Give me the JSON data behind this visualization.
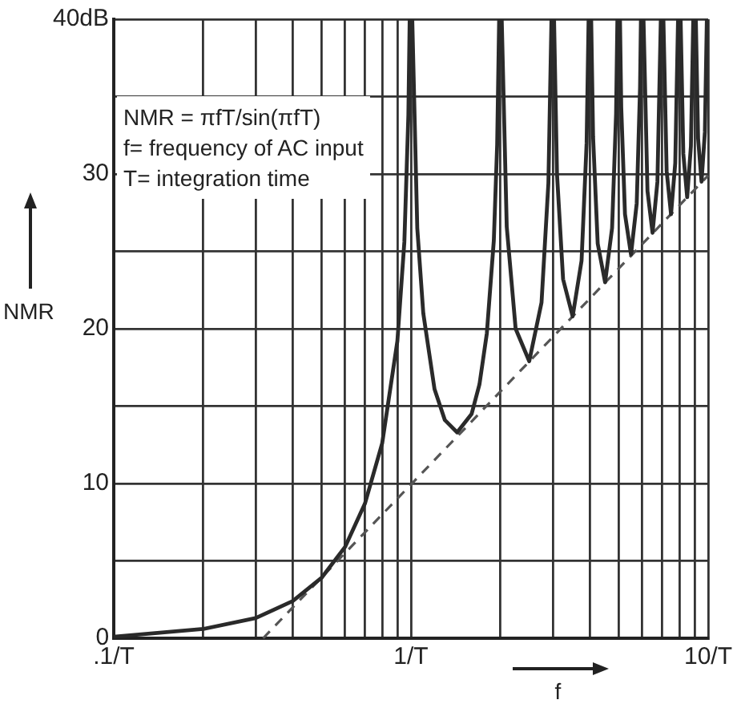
{
  "chart_data": {
    "type": "line",
    "xlabel": "f",
    "ylabel": "NMR",
    "log": "x",
    "grid": true,
    "annotations": [
      "NMR = πfT/sin(πfT)",
      "f= frequency of AC input",
      "T= integration time"
    ],
    "xlim": [
      0.1,
      10
    ],
    "ylim": [
      0,
      40
    ],
    "xticks": [
      {
        "value": 0.1,
        "label": ".1/T"
      },
      {
        "value": 0.2,
        "label": null
      },
      {
        "value": 0.3,
        "label": null
      },
      {
        "value": 0.4,
        "label": null
      },
      {
        "value": 0.5,
        "label": null
      },
      {
        "value": 0.6,
        "label": null
      },
      {
        "value": 0.7,
        "label": null
      },
      {
        "value": 0.8,
        "label": null
      },
      {
        "value": 0.9,
        "label": null
      },
      {
        "value": 1,
        "label": "1/T"
      },
      {
        "value": 2,
        "label": null
      },
      {
        "value": 3,
        "label": null
      },
      {
        "value": 4,
        "label": null
      },
      {
        "value": 5,
        "label": null
      },
      {
        "value": 6,
        "label": null
      },
      {
        "value": 7,
        "label": null
      },
      {
        "value": 8,
        "label": null
      },
      {
        "value": 9,
        "label": null
      },
      {
        "value": 10,
        "label": "10/T"
      }
    ],
    "yticks": [
      0,
      {
        "value": 5,
        "label": null
      },
      10,
      {
        "value": 15,
        "label": null
      },
      20,
      {
        "value": 25,
        "label": null
      },
      30,
      {
        "value": 35,
        "label": null
      },
      {
        "value": 40,
        "label": "40dB"
      }
    ],
    "series": [
      {
        "color": "#2a2a2a",
        "line_style": "solid",
        "x": [
          0.1,
          0.2,
          0.3,
          0.4,
          0.5,
          0.6,
          0.7,
          0.8,
          0.9,
          0.95,
          0.98,
          0.99,
          1,
          1.01,
          1.05,
          1.1,
          1.2,
          1.3,
          1.43,
          1.6,
          1.7,
          1.8,
          1.9,
          1.95,
          1.98,
          2,
          2.02,
          2.1,
          2.25,
          2.5,
          2.75,
          2.9,
          2.97,
          3,
          3.03,
          3.1,
          3.25,
          3.5,
          3.75,
          3.9,
          3.96,
          4,
          4.04,
          4.1,
          4.25,
          4.5,
          4.75,
          4.9,
          4.95,
          5,
          5.05,
          5.1,
          5.25,
          5.5,
          5.75,
          5.9,
          5.94,
          6,
          6.06,
          6.25,
          6.5,
          6.75,
          6.93,
          7,
          7.07,
          7.25,
          7.5,
          7.75,
          7.92,
          8,
          8.08,
          8.25,
          8.5,
          8.75,
          8.91,
          9,
          9.09,
          9.25,
          9.5,
          9.75,
          9.9
        ],
        "values": [
          0.1,
          0.6,
          1.3,
          2.4,
          3.9,
          5.9,
          8.7,
          12.6,
          19.2,
          25.6,
          33.8,
          40,
          null,
          40,
          26.5,
          21,
          16.1,
          14.1,
          13.3,
          14.5,
          16.4,
          19.7,
          25.7,
          31.9,
          40,
          null,
          40,
          26.6,
          20,
          17.9,
          21.7,
          29.4,
          40,
          null,
          40,
          30,
          23.2,
          20.8,
          24.4,
          32,
          40,
          null,
          40,
          32.4,
          25.5,
          23,
          26.5,
          33.9,
          40,
          null,
          40,
          34.3,
          27.4,
          24.8,
          28.1,
          35.6,
          40,
          null,
          40,
          28.9,
          26.2,
          29.5,
          40,
          null,
          40,
          30.2,
          27.4,
          30.7,
          40,
          null,
          40,
          31.3,
          28.5,
          31.8,
          40,
          null,
          40,
          32.3,
          29.5,
          32.7,
          40
        ]
      },
      {
        "color": "#555555",
        "line_style": "dashed",
        "x": [
          0.318,
          10
        ],
        "values": [
          0,
          29.9
        ]
      }
    ]
  }
}
